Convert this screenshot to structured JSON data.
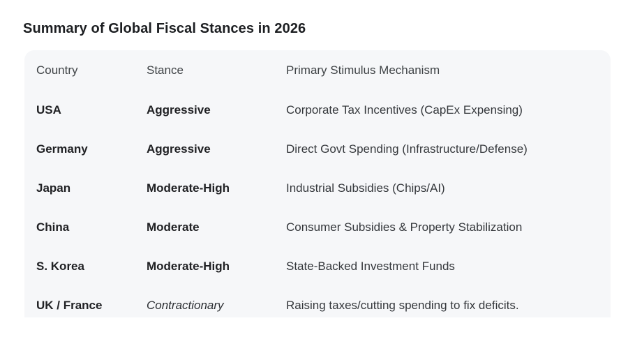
{
  "page": {
    "title": "Summary of Global Fiscal Stances in 2026"
  },
  "table": {
    "columns": [
      "Country",
      "Stance",
      "Primary Stimulus Mechanism"
    ],
    "rows": [
      {
        "country": "USA",
        "stance": "Aggressive",
        "stance_emphasis": "bold",
        "mechanism": "Corporate Tax Incentives (CapEx Expensing)"
      },
      {
        "country": "Germany",
        "stance": "Aggressive",
        "stance_emphasis": "bold",
        "mechanism": "Direct Govt Spending (Infrastructure/Defense)"
      },
      {
        "country": "Japan",
        "stance": "Moderate-High",
        "stance_emphasis": "bold",
        "mechanism": "Industrial Subsidies (Chips/AI)"
      },
      {
        "country": "China",
        "stance": "Moderate",
        "stance_emphasis": "bold",
        "mechanism": "Consumer Subsidies & Property Stabilization"
      },
      {
        "country": "S. Korea",
        "stance": "Moderate-High",
        "stance_emphasis": "bold",
        "mechanism": "State-Backed Investment Funds"
      },
      {
        "country": "UK / France",
        "stance": "Contractionary",
        "stance_emphasis": "italic",
        "mechanism": "Raising taxes/cutting spending to fix deficits."
      }
    ]
  },
  "colors": {
    "panel_background": "#f6f7f9",
    "title_text": "#1c1e21",
    "header_text": "#3f4346",
    "body_bold_text": "#202124",
    "mechanism_text": "#35383c",
    "page_background": "#ffffff"
  }
}
